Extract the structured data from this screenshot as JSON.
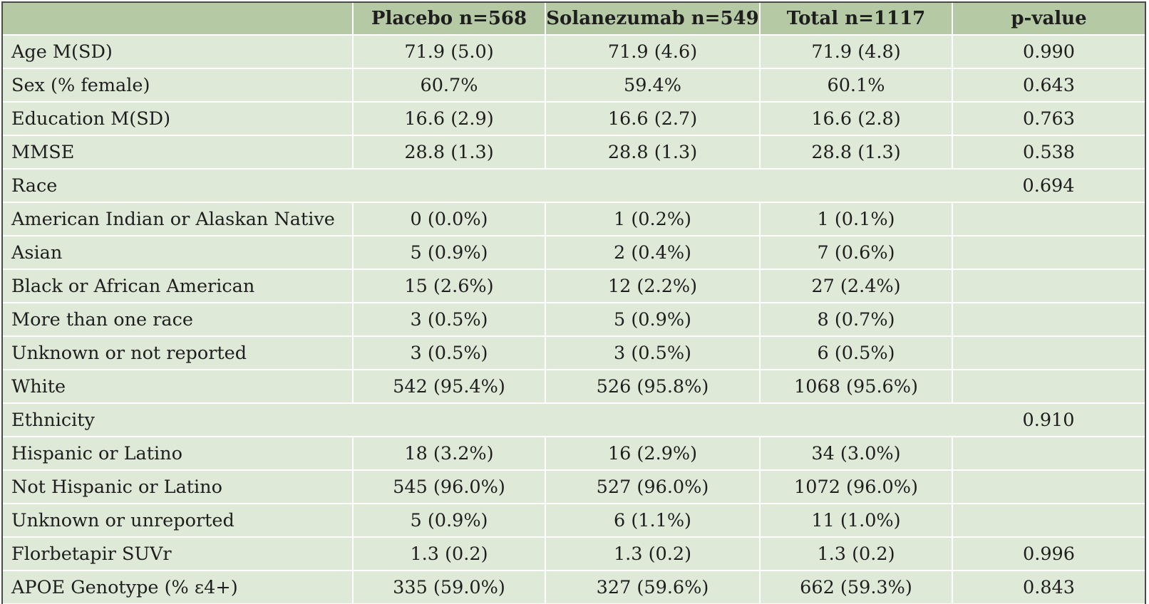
{
  "table": {
    "headers": [
      "",
      "Placebo n=568",
      "Solanezumab n=549",
      "Total n=1117",
      "p-value"
    ],
    "rows": [
      {
        "label": "Age M(SD)",
        "placebo": "71.9 (5.0)",
        "solanezumab": "71.9 (4.6)",
        "total": "71.9 (4.8)",
        "p": "0.990"
      },
      {
        "label": "Sex (% female)",
        "placebo": "60.7%",
        "solanezumab": "59.4%",
        "total": "60.1%",
        "p": "0.643"
      },
      {
        "label": "Education M(SD)",
        "placebo": "16.6 (2.9)",
        "solanezumab": "16.6 (2.7)",
        "total": "16.6 (2.8)",
        "p": "0.763"
      },
      {
        "label": "MMSE",
        "placebo": "28.8 (1.3)",
        "solanezumab": "28.8 (1.3)",
        "total": "28.8 (1.3)",
        "p": "0.538"
      },
      {
        "label": "Race",
        "placebo": "",
        "solanezumab": "",
        "total": "",
        "p": "0.694"
      },
      {
        "label": "American Indian or Alaskan Native",
        "placebo": "0 (0.0%)",
        "solanezumab": "1 (0.2%)",
        "total": "1 (0.1%)",
        "p": ""
      },
      {
        "label": "Asian",
        "placebo": "5 (0.9%)",
        "solanezumab": "2 (0.4%)",
        "total": "7 (0.6%)",
        "p": ""
      },
      {
        "label": "Black or African American",
        "placebo": "15 (2.6%)",
        "solanezumab": "12 (2.2%)",
        "total": "27 (2.4%)",
        "p": ""
      },
      {
        "label": "More than one race",
        "placebo": "3 (0.5%)",
        "solanezumab": "5 (0.9%)",
        "total": "8 (0.7%)",
        "p": ""
      },
      {
        "label": "Unknown or not reported",
        "placebo": "3 (0.5%)",
        "solanezumab": "3 (0.5%)",
        "total": "6 (0.5%)",
        "p": ""
      },
      {
        "label": "White",
        "placebo": "542 (95.4%)",
        "solanezumab": "526 (95.8%)",
        "total": "1068 (95.6%)",
        "p": ""
      },
      {
        "label": "Ethnicity",
        "placebo": "",
        "solanezumab": "",
        "total": "",
        "p": "0.910"
      },
      {
        "label": "Hispanic or Latino",
        "placebo": "18 (3.2%)",
        "solanezumab": "16 (2.9%)",
        "total": "34 (3.0%)",
        "p": ""
      },
      {
        "label": "Not Hispanic or Latino",
        "placebo": "545 (96.0%)",
        "solanezumab": "527 (96.0%)",
        "total": "1072 (96.0%)",
        "p": ""
      },
      {
        "label": "Unknown or unreported",
        "placebo": "5 (0.9%)",
        "solanezumab": "6 (1.1%)",
        "total": "11 (1.0%)",
        "p": ""
      },
      {
        "label": "Florbetapir SUVr",
        "placebo": "1.3 (0.2)",
        "solanezumab": "1.3 (0.2)",
        "total": "1.3 (0.2)",
        "p": "0.996"
      },
      {
        "label": "APOE Genotype (% ε4+)",
        "placebo": "335 (59.0%)",
        "solanezumab": "327 (59.6%)",
        "total": "662 (59.3%)",
        "p": "0.843"
      }
    ]
  },
  "colors": {
    "header_bg": "#b5c9a5",
    "body_bg": "#dfe9d7",
    "grid": "#ffffff",
    "frame": "#4a4a4a"
  }
}
